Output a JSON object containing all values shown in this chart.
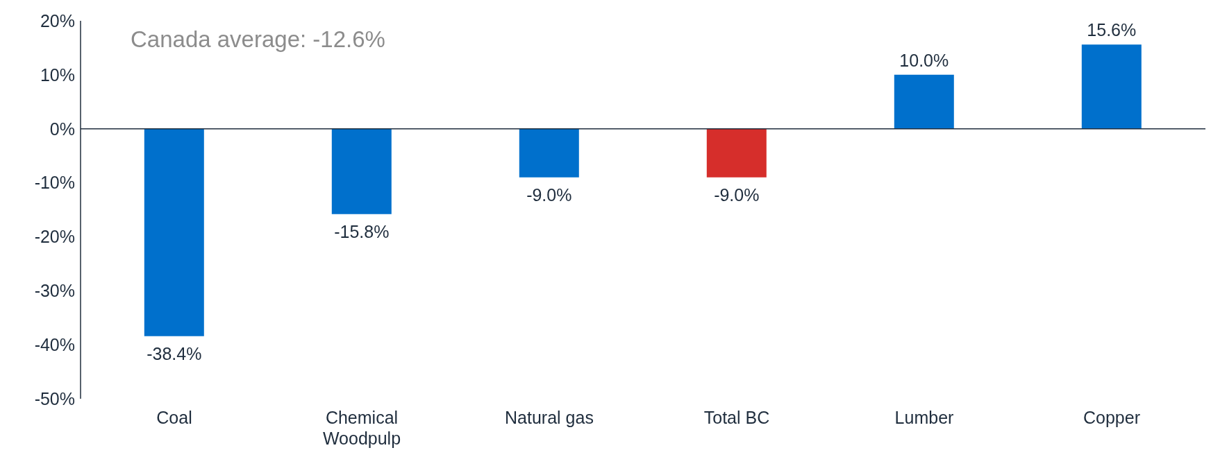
{
  "chart_data": {
    "type": "bar",
    "categories": [
      "Coal",
      "Chemical Woodpulp",
      "Natural gas",
      "Total BC",
      "Lumber",
      "Copper"
    ],
    "values": [
      -38.4,
      -15.8,
      -9.0,
      -9.0,
      10.0,
      15.6
    ],
    "colors": [
      "#0070cc",
      "#0070cc",
      "#0070cc",
      "#d62e2b",
      "#0070cc",
      "#0070cc"
    ],
    "value_labels": [
      "-38.4%",
      "-15.8%",
      "-9.0%",
      "-9.0%",
      "10.0%",
      "15.6%"
    ],
    "ylim": [
      -50,
      20
    ],
    "yticks": [
      {
        "value": 20,
        "label": "20%"
      },
      {
        "value": 10,
        "label": "10%"
      },
      {
        "value": 0,
        "label": "0%"
      },
      {
        "value": -10,
        "label": "-10%"
      },
      {
        "value": -20,
        "label": "-20%"
      },
      {
        "value": -30,
        "label": "-30%"
      },
      {
        "value": -40,
        "label": "-40%"
      },
      {
        "value": -50,
        "label": "-50%"
      }
    ],
    "annotations": [
      "Canada average: -12.6%"
    ],
    "legend": false
  }
}
